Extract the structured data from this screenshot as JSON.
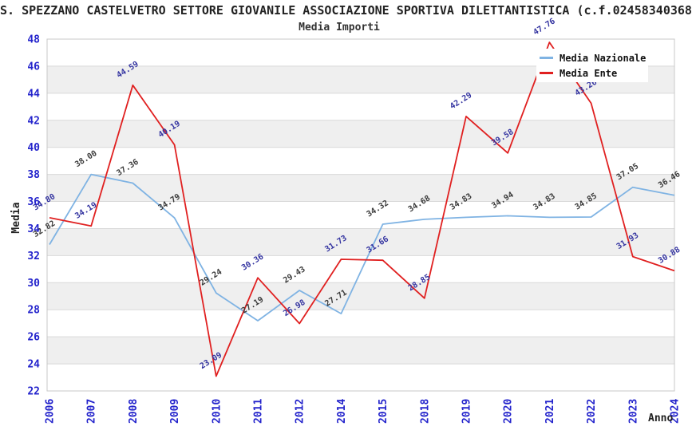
{
  "header": {
    "title": "S. SPEZZANO CASTELVETRO SETTORE GIOVANILE ASSOCIAZIONE SPORTIVA DILETTANTISTICA (c.f.02458340368",
    "subtitle": "Media Importi"
  },
  "chart_data": {
    "type": "line",
    "title": "Media Importi",
    "xlabel": "Anno",
    "ylabel": "Media",
    "ylim": [
      22,
      48
    ],
    "ytick_step": 2,
    "grid": "horizontal-bands",
    "legend_position": "top-right",
    "tick_color": "#2424CC",
    "band_color": "#EFEFEF",
    "gridline_color": "#D9D9D9",
    "border_color": "#C8C8C8",
    "categories": [
      "2006",
      "2007",
      "2008",
      "2009",
      "2010",
      "2011",
      "2012",
      "2014",
      "2015",
      "2018",
      "2019",
      "2020",
      "2021",
      "2022",
      "2023",
      "2024"
    ],
    "series": [
      {
        "name": "Media Nazionale",
        "color": "#7FB3E3",
        "label_color": "#3A3A3A",
        "values": [
          32.82,
          38.0,
          37.36,
          34.79,
          29.24,
          27.19,
          29.43,
          27.71,
          34.32,
          34.68,
          34.83,
          34.94,
          34.83,
          34.85,
          37.05,
          36.46
        ]
      },
      {
        "name": "Media Ente",
        "color": "#E02020",
        "label_color": "#3333A0",
        "values": [
          34.8,
          34.19,
          44.59,
          40.19,
          23.09,
          30.36,
          26.98,
          31.73,
          31.66,
          28.85,
          42.29,
          39.58,
          47.76,
          43.26,
          31.93,
          30.88
        ]
      }
    ]
  }
}
